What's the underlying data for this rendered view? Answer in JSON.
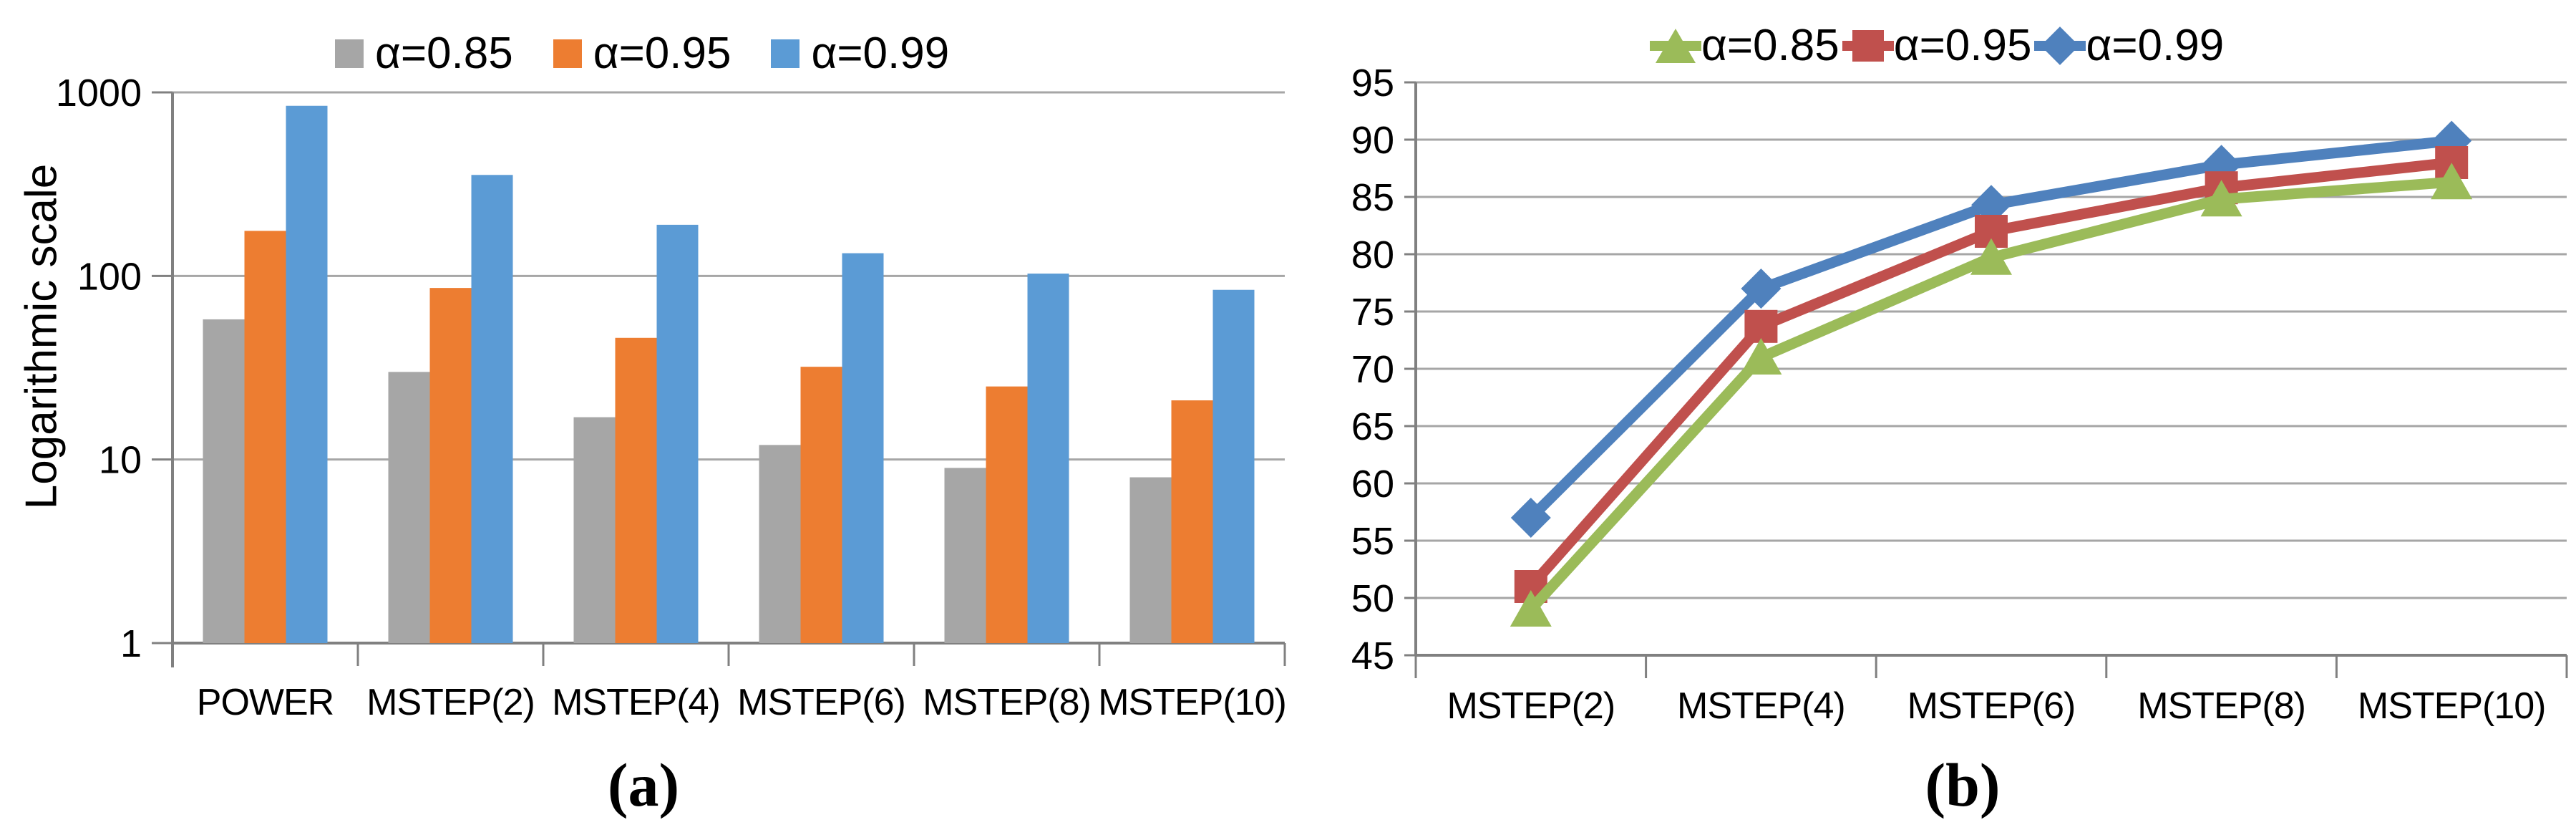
{
  "figure": {
    "background": "#FFFFFF",
    "grid_color": "#A6A6A6",
    "axis_color": "#808080"
  },
  "chart_data": [
    {
      "type": "bar",
      "caption": "(a)",
      "ylabel": "Logarithmic scale",
      "y_scale": "log10",
      "ylim": [
        1,
        1000
      ],
      "yticks": [
        1,
        10,
        100,
        1000
      ],
      "grid": true,
      "legend_position": "top",
      "categories": [
        "POWER",
        "MSTEP(2)",
        "MSTEP(4)",
        "MSTEP(6)",
        "MSTEP(8)",
        "MSTEP(10)"
      ],
      "series": [
        {
          "name": "α=0.85",
          "color": "#A6A6A6",
          "values": [
            58,
            30,
            17,
            12,
            9,
            8
          ]
        },
        {
          "name": "α=0.95",
          "color": "#ED7D31",
          "values": [
            176,
            86,
            46,
            32,
            25,
            21
          ]
        },
        {
          "name": "α=0.99",
          "color": "#5B9BD5",
          "values": [
            845,
            355,
            190,
            133,
            103,
            84
          ]
        }
      ]
    },
    {
      "type": "line",
      "caption": "(b)",
      "ylabel": "",
      "ylim": [
        45,
        95
      ],
      "yticks": [
        45,
        50,
        55,
        60,
        65,
        70,
        75,
        80,
        85,
        90,
        95
      ],
      "grid": true,
      "legend_position": "top",
      "categories": [
        "MSTEP(2)",
        "MSTEP(4)",
        "MSTEP(6)",
        "MSTEP(8)",
        "MSTEP(10)"
      ],
      "series": [
        {
          "name": "α=0.85",
          "color": "#9BBB59",
          "marker": "triangle",
          "values": [
            49,
            71,
            79.7,
            84.8,
            86.3
          ]
        },
        {
          "name": "α=0.95",
          "color": "#C0504D",
          "marker": "square",
          "values": [
            51,
            73.7,
            82,
            85.8,
            88
          ]
        },
        {
          "name": "α=0.99",
          "color": "#4F81BD",
          "marker": "diamond",
          "values": [
            57,
            77,
            84.3,
            87.8,
            89.9
          ]
        }
      ]
    }
  ]
}
